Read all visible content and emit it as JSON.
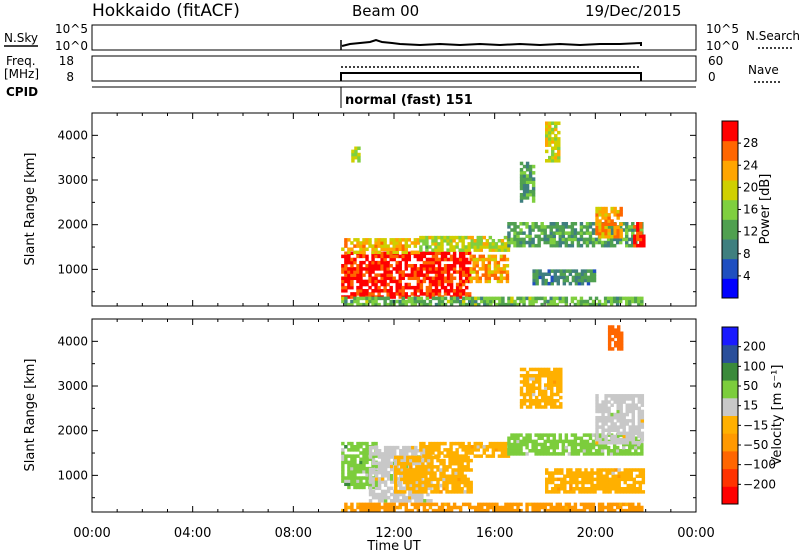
{
  "header": {
    "station": "Hokkaido (fitACF)",
    "beam": "Beam 00",
    "date": "19/Dec/2015"
  },
  "noise_panel": {
    "left_label": "N.Sky",
    "left_ticks": [
      "10^5",
      "10^0"
    ],
    "right_ticks": [
      "10^5",
      "10^0"
    ],
    "right_label": "N.Search"
  },
  "freq_panel": {
    "left_label_1": "Freq.",
    "left_label_2": "[MHz]",
    "left_ticks": [
      "18",
      "8"
    ],
    "right_ticks": [
      "60",
      "0"
    ],
    "right_label": "Nave"
  },
  "cpid": {
    "label": "CPID",
    "mode_text": "normal (fast) 151"
  },
  "colors": {
    "power_scale": [
      "#0000ff",
      "#1f4fc0",
      "#3f7f7f",
      "#50a050",
      "#7fcf3f",
      "#cfcf00",
      "#ffa500",
      "#ff6600",
      "#ff0000"
    ],
    "velocity_scale": [
      "#ff0000",
      "#ff3300",
      "#ff6600",
      "#ff9900",
      "#ffb000",
      "#c8c8c8",
      "#7ccd3c",
      "#3a8a3a",
      "#2a4f9a",
      "#1a1aff"
    ]
  },
  "chart_data": [
    {
      "type": "heatmap",
      "name": "power",
      "ylabel": "Slant Range [km]",
      "yticks": [
        1000,
        2000,
        3000,
        4000
      ],
      "ylim": [
        180,
        4500
      ],
      "xlim": [
        0,
        24
      ],
      "colorbar": {
        "label": "Power [dB]",
        "ticks": [
          "4",
          "8",
          "12",
          "16",
          "20",
          "24",
          "28"
        ],
        "range": [
          0,
          32
        ]
      },
      "regions": [
        {
          "t0": 9.9,
          "t1": 15.0,
          "r0": 350,
          "r1": 1350,
          "value": 30
        },
        {
          "t0": 9.9,
          "t1": 13.0,
          "r0": 1350,
          "r1": 1700,
          "value": 22
        },
        {
          "t0": 13.0,
          "t1": 16.5,
          "r0": 1400,
          "r1": 1750,
          "value": 18
        },
        {
          "t0": 15.0,
          "t1": 16.5,
          "r0": 700,
          "r1": 1300,
          "value": 24
        },
        {
          "t0": 16.5,
          "t1": 21.9,
          "r0": 1500,
          "r1": 2000,
          "value": 12
        },
        {
          "t0": 17.5,
          "t1": 20.0,
          "r0": 650,
          "r1": 1000,
          "value": 10
        },
        {
          "t0": 20.0,
          "t1": 21.0,
          "r0": 1700,
          "r1": 2400,
          "value": 24
        },
        {
          "t0": 21.5,
          "t1": 21.9,
          "r0": 1500,
          "r1": 2000,
          "value": 30
        },
        {
          "t0": 9.9,
          "t1": 21.9,
          "r0": 180,
          "r1": 330,
          "value": 14
        },
        {
          "t0": 18.0,
          "t1": 18.6,
          "r0": 3400,
          "r1": 4300,
          "value": 20
        },
        {
          "t0": 17.0,
          "t1": 17.6,
          "r0": 2500,
          "r1": 3400,
          "value": 12
        },
        {
          "t0": 10.3,
          "t1": 10.6,
          "r0": 3400,
          "r1": 3700,
          "value": 18
        }
      ]
    },
    {
      "type": "heatmap",
      "name": "velocity",
      "ylabel": "Slant Range [km]",
      "xlabel": "Time UT",
      "xticks": [
        "00:00",
        "04:00",
        "08:00",
        "12:00",
        "16:00",
        "20:00",
        "00:00"
      ],
      "yticks": [
        1000,
        2000,
        3000,
        4000
      ],
      "ylim": [
        180,
        4500
      ],
      "xlim": [
        0,
        24
      ],
      "colorbar": {
        "label": "Velocity [m s⁻¹]",
        "ticks": [
          "−200",
          "−100",
          "−50",
          "−15",
          "15",
          "50",
          "100",
          "200"
        ]
      },
      "regions": [
        {
          "t0": 9.9,
          "t1": 11.3,
          "r0": 700,
          "r1": 1700,
          "value": 30
        },
        {
          "t0": 11.0,
          "t1": 13.5,
          "r0": 400,
          "r1": 1600,
          "value": 0
        },
        {
          "t0": 12.0,
          "t1": 15.0,
          "r0": 600,
          "r1": 1400,
          "value": -30
        },
        {
          "t0": 13.0,
          "t1": 16.5,
          "r0": 1400,
          "r1": 1750,
          "value": -30
        },
        {
          "t0": 16.5,
          "t1": 21.9,
          "r0": 1450,
          "r1": 1900,
          "value": 20
        },
        {
          "t0": 18.0,
          "t1": 21.9,
          "r0": 600,
          "r1": 1100,
          "value": -40
        },
        {
          "t0": 20.0,
          "t1": 21.9,
          "r0": 1700,
          "r1": 2800,
          "value": 0
        },
        {
          "t0": 9.9,
          "t1": 21.9,
          "r0": 180,
          "r1": 330,
          "value": -60
        },
        {
          "t0": 17.0,
          "t1": 18.6,
          "r0": 2500,
          "r1": 3400,
          "value": -30
        },
        {
          "t0": 20.5,
          "t1": 21.0,
          "r0": 3800,
          "r1": 4300,
          "value": -150
        }
      ]
    }
  ]
}
